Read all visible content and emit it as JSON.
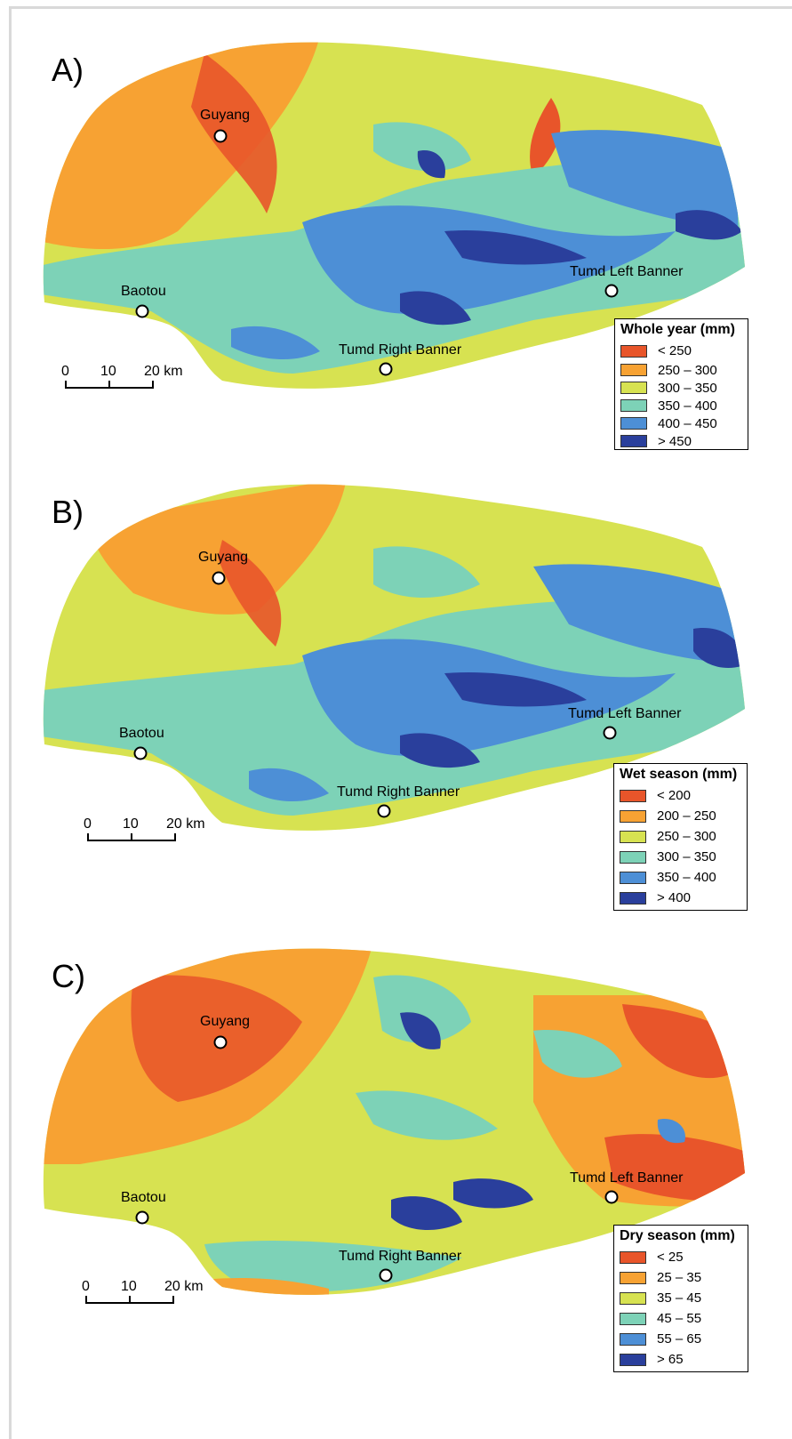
{
  "colors": {
    "c1": "#e8552a",
    "c2": "#f7a233",
    "c3": "#d7e251",
    "c4": "#7dd2b7",
    "c5": "#4d8fd6",
    "c6": "#2a3f9c"
  },
  "panels": [
    {
      "label": "A)",
      "cities": {
        "guyang": "Guyang",
        "baotou": "Baotou",
        "tumd_left": "Tumd Left Banner",
        "tumd_right": "Tumd Right Banner"
      },
      "scale": {
        "t0": "0",
        "t1": "10",
        "t2": "20 km"
      },
      "legend": {
        "title": "Whole year (mm)",
        "items": [
          {
            "label": "<  250",
            "color": "#e8552a"
          },
          {
            "label": "250 – 300",
            "color": "#f7a233"
          },
          {
            "label": "300 – 350",
            "color": "#d7e251"
          },
          {
            "label": "350 – 400",
            "color": "#7dd2b7"
          },
          {
            "label": "400 – 450",
            "color": "#4d8fd6"
          },
          {
            "label": ">  450",
            "color": "#2a3f9c"
          }
        ]
      }
    },
    {
      "label": "B)",
      "cities": {
        "guyang": "Guyang",
        "baotou": "Baotou",
        "tumd_left": "Tumd Left Banner",
        "tumd_right": "Tumd Right Banner"
      },
      "scale": {
        "t0": "0",
        "t1": "10",
        "t2": "20 km"
      },
      "legend": {
        "title": "Wet season (mm)",
        "items": [
          {
            "label": "<  200",
            "color": "#e8552a"
          },
          {
            "label": "200 – 250",
            "color": "#f7a233"
          },
          {
            "label": "250 – 300",
            "color": "#d7e251"
          },
          {
            "label": "300 – 350",
            "color": "#7dd2b7"
          },
          {
            "label": "350 – 400",
            "color": "#4d8fd6"
          },
          {
            "label": ">  400",
            "color": "#2a3f9c"
          }
        ]
      }
    },
    {
      "label": "C)",
      "cities": {
        "guyang": "Guyang",
        "baotou": "Baotou",
        "tumd_left": "Tumd Left Banner",
        "tumd_right": "Tumd Right Banner"
      },
      "scale": {
        "t0": "0",
        "t1": "10",
        "t2": "20 km"
      },
      "legend": {
        "title": "Dry season (mm)",
        "items": [
          {
            "label": "<  25",
            "color": "#e8552a"
          },
          {
            "label": "25 – 35",
            "color": "#f7a233"
          },
          {
            "label": "35 – 45",
            "color": "#d7e251"
          },
          {
            "label": "45 – 55",
            "color": "#7dd2b7"
          },
          {
            "label": "55 – 65",
            "color": "#4d8fd6"
          },
          {
            "label": ">  65",
            "color": "#2a3f9c"
          }
        ]
      }
    }
  ]
}
